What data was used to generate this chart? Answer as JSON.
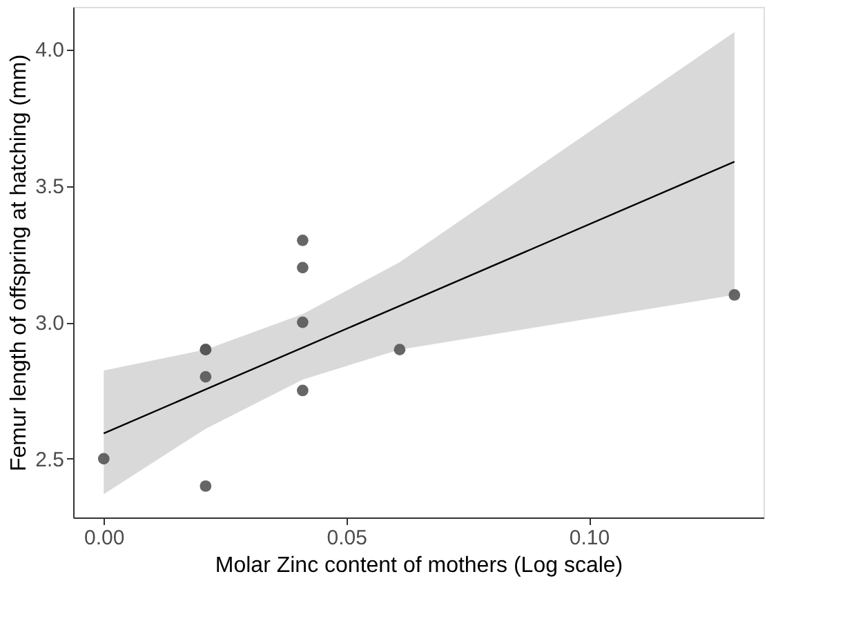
{
  "chart_data": {
    "type": "scatter",
    "xlabel": "Molar Zinc content of mothers (Log scale)",
    "ylabel": "Femur length of offspring at hatching (mm)",
    "xlim": [
      -0.0063,
      0.136
    ],
    "ylim": [
      2.285,
      4.155
    ],
    "xticks": [
      {
        "value": 0,
        "label": "0.00"
      },
      0.05,
      {
        "value": 0.1,
        "label": "0.10"
      }
    ],
    "yticks": [
      2.5,
      {
        "value": 3,
        "label": "3.0"
      },
      3.5,
      {
        "value": 4,
        "label": "4.0"
      }
    ],
    "grid": false,
    "marker": "circle",
    "series": [
      {
        "color": "#555555",
        "x": [
          0,
          0.021,
          0.021,
          0.021,
          0.021,
          0.041,
          0.041,
          0.041,
          0.041,
          0.061,
          0.13
        ],
        "values": [
          2.5,
          2.9,
          2.9,
          2.8,
          2.4,
          3.3,
          3.2,
          3.0,
          2.75,
          2.9,
          3.1
        ]
      },
      {
        "type": "line",
        "color": "#000000",
        "marker": "none",
        "line_style": "solid",
        "x": [
          0,
          0.021,
          0.041,
          0.061,
          0.13
        ],
        "values": [
          2.593,
          2.754,
          2.907,
          3.06,
          3.588
        ],
        "lower": [
          2.37,
          2.61,
          2.79,
          2.9,
          3.1
        ],
        "upper": [
          2.823,
          2.9,
          3.03,
          3.22,
          4.063
        ]
      }
    ]
  }
}
